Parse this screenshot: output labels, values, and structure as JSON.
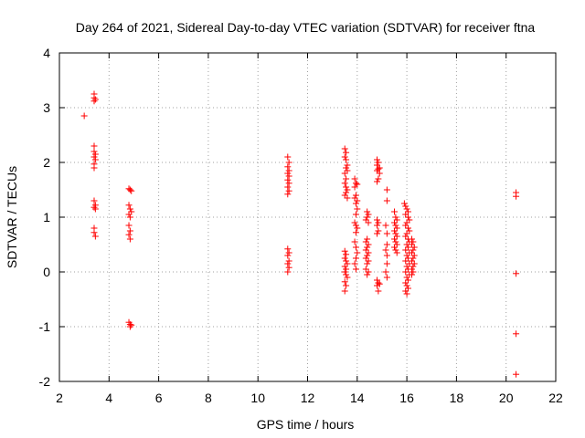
{
  "chart_data": {
    "type": "scatter",
    "title": "Day 264 of 2021, Sidereal Day-to-day VTEC variation (SDTVAR) for receiver ftna",
    "xlabel": "GPS time / hours",
    "ylabel": "SDTVAR / TECUs",
    "xlim": [
      2,
      22
    ],
    "ylim": [
      -2,
      4
    ],
    "xticks": [
      "2",
      "4",
      "6",
      "8",
      "10",
      "12",
      "14",
      "16",
      "18",
      "20",
      "22"
    ],
    "yticks": [
      "-2",
      "-1",
      "0",
      "1",
      "2",
      "3",
      "4"
    ],
    "grid": true,
    "marker": "+",
    "color": "#ff0000",
    "series": [
      {
        "name": "SDTVAR",
        "points": [
          [
            3.0,
            2.85
          ],
          [
            3.4,
            3.25
          ],
          [
            3.4,
            3.18
          ],
          [
            3.4,
            3.12
          ],
          [
            3.45,
            3.15
          ],
          [
            3.4,
            2.3
          ],
          [
            3.4,
            2.2
          ],
          [
            3.45,
            2.15
          ],
          [
            3.4,
            2.1
          ],
          [
            3.45,
            2.05
          ],
          [
            3.4,
            1.97
          ],
          [
            3.4,
            1.9
          ],
          [
            3.4,
            1.3
          ],
          [
            3.45,
            1.22
          ],
          [
            3.4,
            1.18
          ],
          [
            3.45,
            1.15
          ],
          [
            3.4,
            0.8
          ],
          [
            3.4,
            0.72
          ],
          [
            3.45,
            0.65
          ],
          [
            4.8,
            1.52
          ],
          [
            4.85,
            1.5
          ],
          [
            4.9,
            1.48
          ],
          [
            4.8,
            1.22
          ],
          [
            4.85,
            1.15
          ],
          [
            4.9,
            1.1
          ],
          [
            4.8,
            1.05
          ],
          [
            4.85,
            1.0
          ],
          [
            4.8,
            0.85
          ],
          [
            4.85,
            0.75
          ],
          [
            4.8,
            0.68
          ],
          [
            4.85,
            0.6
          ],
          [
            4.8,
            -0.92
          ],
          [
            4.85,
            -0.96
          ],
          [
            4.85,
            -1.0
          ],
          [
            4.9,
            -0.97
          ],
          [
            11.2,
            2.1
          ],
          [
            11.25,
            2.0
          ],
          [
            11.2,
            1.92
          ],
          [
            11.25,
            1.85
          ],
          [
            11.2,
            1.8
          ],
          [
            11.25,
            1.75
          ],
          [
            11.2,
            1.68
          ],
          [
            11.25,
            1.62
          ],
          [
            11.2,
            1.55
          ],
          [
            11.25,
            1.48
          ],
          [
            11.2,
            1.42
          ],
          [
            11.2,
            0.42
          ],
          [
            11.25,
            0.35
          ],
          [
            11.2,
            0.3
          ],
          [
            11.25,
            0.2
          ],
          [
            11.2,
            0.15
          ],
          [
            11.25,
            0.08
          ],
          [
            11.2,
            0.0
          ],
          [
            13.5,
            2.25
          ],
          [
            13.55,
            2.18
          ],
          [
            13.5,
            2.1
          ],
          [
            13.55,
            2.05
          ],
          [
            13.6,
            1.95
          ],
          [
            13.55,
            1.9
          ],
          [
            13.6,
            1.85
          ],
          [
            13.5,
            1.8
          ],
          [
            13.55,
            1.7
          ],
          [
            13.5,
            1.62
          ],
          [
            13.55,
            1.55
          ],
          [
            13.6,
            1.5
          ],
          [
            13.55,
            1.45
          ],
          [
            13.5,
            1.4
          ],
          [
            13.6,
            1.35
          ],
          [
            13.5,
            0.38
          ],
          [
            13.55,
            0.32
          ],
          [
            13.5,
            0.25
          ],
          [
            13.55,
            0.2
          ],
          [
            13.6,
            0.15
          ],
          [
            13.5,
            0.1
          ],
          [
            13.55,
            0.05
          ],
          [
            13.5,
            0.0
          ],
          [
            13.55,
            -0.05
          ],
          [
            13.6,
            -0.1
          ],
          [
            13.5,
            -0.18
          ],
          [
            13.55,
            -0.25
          ],
          [
            13.5,
            -0.35
          ],
          [
            13.9,
            1.7
          ],
          [
            13.95,
            1.62
          ],
          [
            13.9,
            1.55
          ],
          [
            14.0,
            1.6
          ],
          [
            13.95,
            1.4
          ],
          [
            13.9,
            1.35
          ],
          [
            14.0,
            1.3
          ],
          [
            13.95,
            1.25
          ],
          [
            14.0,
            1.15
          ],
          [
            13.95,
            1.05
          ],
          [
            13.9,
            0.9
          ],
          [
            13.95,
            0.85
          ],
          [
            14.0,
            0.8
          ],
          [
            13.95,
            0.72
          ],
          [
            13.9,
            0.55
          ],
          [
            13.95,
            0.45
          ],
          [
            14.0,
            0.35
          ],
          [
            13.95,
            0.25
          ],
          [
            13.9,
            0.15
          ],
          [
            13.95,
            0.05
          ],
          [
            14.4,
            1.1
          ],
          [
            14.45,
            1.05
          ],
          [
            14.4,
            1.0
          ],
          [
            14.35,
            0.95
          ],
          [
            14.45,
            0.9
          ],
          [
            14.4,
            0.6
          ],
          [
            14.35,
            0.55
          ],
          [
            14.45,
            0.5
          ],
          [
            14.4,
            0.45
          ],
          [
            14.35,
            0.4
          ],
          [
            14.45,
            0.35
          ],
          [
            14.4,
            0.3
          ],
          [
            14.35,
            0.25
          ],
          [
            14.45,
            0.2
          ],
          [
            14.4,
            0.15
          ],
          [
            14.35,
            0.05
          ],
          [
            14.4,
            -0.05
          ],
          [
            14.45,
            0.0
          ],
          [
            14.8,
            2.05
          ],
          [
            14.85,
            2.0
          ],
          [
            14.8,
            1.95
          ],
          [
            14.9,
            1.9
          ],
          [
            14.85,
            1.88
          ],
          [
            14.8,
            1.85
          ],
          [
            14.9,
            1.8
          ],
          [
            14.85,
            1.7
          ],
          [
            14.8,
            1.65
          ],
          [
            14.8,
            0.95
          ],
          [
            14.85,
            0.9
          ],
          [
            14.8,
            0.85
          ],
          [
            14.85,
            0.75
          ],
          [
            14.8,
            0.7
          ],
          [
            14.8,
            -0.15
          ],
          [
            14.85,
            -0.2
          ],
          [
            14.8,
            -0.25
          ],
          [
            14.9,
            -0.22
          ],
          [
            14.85,
            -0.35
          ],
          [
            15.2,
            1.5
          ],
          [
            15.2,
            1.3
          ],
          [
            15.15,
            0.85
          ],
          [
            15.2,
            0.7
          ],
          [
            15.2,
            0.5
          ],
          [
            15.15,
            0.4
          ],
          [
            15.2,
            0.3
          ],
          [
            15.2,
            0.15
          ],
          [
            15.15,
            0.0
          ],
          [
            15.2,
            -0.1
          ],
          [
            15.5,
            1.1
          ],
          [
            15.55,
            1.0
          ],
          [
            15.6,
            0.95
          ],
          [
            15.5,
            0.9
          ],
          [
            15.55,
            0.85
          ],
          [
            15.6,
            0.8
          ],
          [
            15.5,
            0.75
          ],
          [
            15.55,
            0.7
          ],
          [
            15.6,
            0.65
          ],
          [
            15.5,
            0.6
          ],
          [
            15.55,
            0.55
          ],
          [
            15.6,
            0.5
          ],
          [
            15.5,
            0.45
          ],
          [
            15.55,
            0.4
          ],
          [
            15.6,
            0.35
          ],
          [
            15.9,
            1.25
          ],
          [
            15.95,
            1.2
          ],
          [
            16.0,
            1.15
          ],
          [
            16.05,
            1.1
          ],
          [
            15.95,
            1.05
          ],
          [
            16.05,
            1.0
          ],
          [
            16.1,
            0.95
          ],
          [
            16.0,
            0.9
          ],
          [
            15.95,
            0.85
          ],
          [
            16.05,
            0.8
          ],
          [
            16.1,
            0.75
          ],
          [
            16.0,
            0.7
          ],
          [
            15.95,
            0.65
          ],
          [
            16.05,
            0.6
          ],
          [
            16.1,
            0.55
          ],
          [
            16.0,
            0.5
          ],
          [
            16.05,
            0.45
          ],
          [
            15.95,
            0.4
          ],
          [
            16.1,
            0.35
          ],
          [
            16.0,
            0.3
          ],
          [
            16.05,
            0.25
          ],
          [
            15.95,
            0.2
          ],
          [
            16.1,
            0.15
          ],
          [
            16.0,
            0.1
          ],
          [
            16.05,
            0.05
          ],
          [
            15.95,
            0.0
          ],
          [
            16.1,
            -0.05
          ],
          [
            16.0,
            -0.1
          ],
          [
            16.05,
            -0.15
          ],
          [
            15.95,
            -0.2
          ],
          [
            16.0,
            -0.25
          ],
          [
            16.05,
            -0.3
          ],
          [
            15.95,
            -0.35
          ],
          [
            16.0,
            -0.4
          ],
          [
            16.2,
            0.6
          ],
          [
            16.25,
            0.55
          ],
          [
            16.2,
            0.5
          ],
          [
            16.3,
            0.45
          ],
          [
            16.25,
            0.4
          ],
          [
            16.2,
            0.35
          ],
          [
            16.3,
            0.3
          ],
          [
            16.25,
            0.25
          ],
          [
            16.2,
            0.2
          ],
          [
            16.3,
            0.15
          ],
          [
            16.25,
            0.1
          ],
          [
            16.2,
            0.05
          ],
          [
            16.25,
            0.0
          ],
          [
            16.2,
            -0.05
          ],
          [
            20.4,
            1.45
          ],
          [
            20.4,
            1.38
          ],
          [
            20.4,
            -0.03
          ],
          [
            20.4,
            -1.13
          ],
          [
            20.4,
            -1.87
          ]
        ]
      }
    ]
  }
}
